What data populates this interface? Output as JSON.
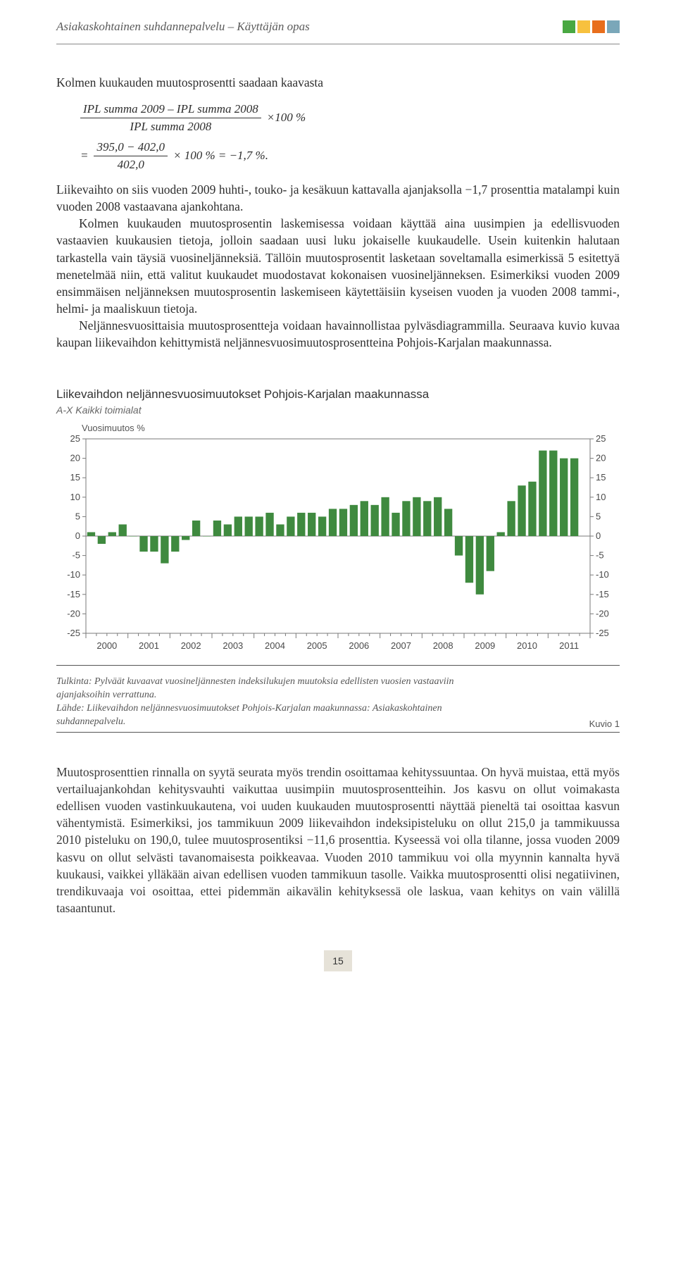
{
  "header": {
    "running_title": "Asiakaskohtainen suhdannepalvelu – Käyttäjän opas",
    "squares": [
      "#49a842",
      "#f7c13e",
      "#e86e1c",
      "#7aa7b9"
    ]
  },
  "body": {
    "p1": "Kolmen kuukauden muutosprosentti saadaan kaavasta",
    "formula": {
      "line1_num": "IPL summa 2009 – IPL summa 2008",
      "line1_den": "IPL summa 2008",
      "line1_tail": "×100 %",
      "line2_eq": "=",
      "line2_num": "395,0 − 402,0",
      "line2_den": "402,0",
      "line2_tail": "× 100 % = −1,7 %."
    },
    "p2": "Liikevaihto on siis vuoden 2009 huhti-, touko- ja kesäkuun kattavalla ajanjaksolla −1,7 prosenttia matalampi kuin vuoden 2008 vastaavana ajankohtana.",
    "p3": "Kolmen kuukauden muutosprosentin laskemisessa voidaan käyttää aina uusimpien ja edellisvuoden vastaavien kuukausien tietoja, jolloin saadaan uusi luku jokaiselle kuukaudelle. Usein kuitenkin halutaan tarkastella vain täysiä vuosineljänneksiä. Tällöin muutosprosentit lasketaan soveltamalla esimerkissä 5 esitettyä menetelmää niin, että valitut kuukaudet muodostavat kokonaisen vuosineljänneksen. Esimerkiksi vuoden 2009 ensimmäisen neljänneksen muutosprosentin laskemiseen käytettäisiin kyseisen vuoden ja vuoden 2008 tammi-, helmi- ja maaliskuun tietoja.",
    "p4": "Neljännesvuosittaisia muutosprosentteja voidaan havainnollistaa pylväsdiagrammilla. Seuraava kuvio kuvaa kaupan liikevaihdon kehittymistä neljännesvuosimuutosprosentteina Pohjois-Karjalan maakunnassa.",
    "chart": {
      "title": "Liikevaihdon neljännesvuosimuutokset Pohjois-Karjalan maakunnassa",
      "subtitle": "A-X Kaikki toimialat",
      "ylabel": "Vuosimuutos %",
      "type": "bar",
      "x_years": [
        "2000",
        "2001",
        "2002",
        "2003",
        "2004",
        "2005",
        "2006",
        "2007",
        "2008",
        "2009",
        "2010",
        "2011"
      ],
      "ylim": [
        -25,
        25
      ],
      "ytick_step": 5,
      "bar_color": "#3f8a3f",
      "axis_color": "#7a7a7a",
      "grid_dash_color": "#bdbdbd",
      "tick_fontsize": 13,
      "values": [
        1,
        -2,
        1,
        3,
        0,
        -4,
        -4,
        -7,
        -4,
        -1,
        4,
        0,
        4,
        3,
        5,
        5,
        5,
        6,
        3,
        5,
        6,
        6,
        5,
        7,
        7,
        8,
        9,
        8,
        10,
        6,
        9,
        10,
        9,
        10,
        7,
        -5,
        -12,
        -15,
        -9,
        1,
        9,
        13,
        14,
        22,
        22,
        20,
        20
      ]
    },
    "caption1": "Tulkinta: Pylväät kuvaavat vuosineljännesten indeksilukujen muutoksia edellisten vuosien vastaaviin ajanjaksoihin verrattuna.",
    "caption2": "Lähde: Liikevaihdon neljännesvuosimuutokset Pohjois-Karjalan maakunnassa: Asiakaskohtainen suhdannepalvelu.",
    "kuvio": "Kuvio 1",
    "p_bottom": "Muutosprosenttien rinnalla on syytä seurata myös trendin osoittamaa kehityssuuntaa. On hyvä muistaa, että myös vertailuajankohdan kehitysvauhti vaikuttaa uusimpiin muutosprosentteihin. Jos kasvu on ollut voimakasta edellisen vuoden vastinkuukautena, voi uuden kuukauden muutosprosentti näyttää pieneltä tai osoittaa kasvun vähentymistä. Esimerkiksi, jos tammikuun 2009 liikevaihdon indeksipisteluku on ollut 215,0 ja tammikuussa 2010 pisteluku on 190,0, tulee muutosprosentiksi −11,6 prosenttia. Kyseessä voi olla tilanne, jossa vuoden 2009 kasvu on ollut selvästi tavanomaisesta poikkeavaa. Vuoden 2010 tammikuu voi olla myynnin kannalta hyvä kuukausi, vaikkei ylläkään aivan edellisen vuoden tammikuun tasolle. Vaikka muutosprosentti olisi negatiivinen, trendikuvaaja voi osoittaa, ettei pidemmän aikavälin kehityksessä ole laskua, vaan kehitys on vain välillä tasaantunut."
  },
  "page_number": "15"
}
